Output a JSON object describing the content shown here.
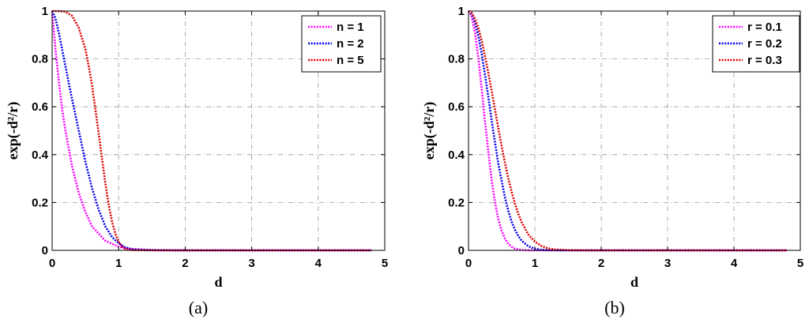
{
  "chart_data": [
    {
      "type": "line",
      "panel_label": "(a)",
      "xlabel": "d",
      "ylabel": "exp(-d²/r)",
      "xlim": [
        0,
        5
      ],
      "ylim": [
        0,
        1
      ],
      "xticks": [
        "0",
        "1",
        "2",
        "3",
        "4",
        "5"
      ],
      "yticks": [
        "0",
        "0.2",
        "0.4",
        "0.6",
        "0.8",
        "1"
      ],
      "grid": true,
      "legend_position": "top-right",
      "series": [
        {
          "name": "n = 1",
          "color": "#ff00ff",
          "x": [
            0,
            0.05,
            0.1,
            0.15,
            0.2,
            0.3,
            0.4,
            0.5,
            0.6,
            0.8,
            1.0,
            1.2,
            1.5,
            2,
            3,
            4,
            4.8
          ],
          "y": [
            1,
            0.84,
            0.71,
            0.59,
            0.5,
            0.35,
            0.24,
            0.16,
            0.1,
            0.04,
            0.015,
            0.005,
            0.001,
            0,
            0,
            0,
            0
          ]
        },
        {
          "name": "n = 2",
          "color": "#0000ee",
          "x": [
            0,
            0.05,
            0.1,
            0.2,
            0.3,
            0.4,
            0.5,
            0.6,
            0.7,
            0.8,
            0.9,
            1.0,
            1.1,
            1.2,
            1.5,
            2,
            3,
            4,
            4.8
          ],
          "y": [
            1,
            0.97,
            0.91,
            0.77,
            0.63,
            0.5,
            0.37,
            0.26,
            0.17,
            0.1,
            0.055,
            0.03,
            0.012,
            0.005,
            0.001,
            0,
            0,
            0,
            0
          ]
        },
        {
          "name": "n = 5",
          "color": "#dd0000",
          "x": [
            0,
            0.1,
            0.2,
            0.3,
            0.4,
            0.5,
            0.55,
            0.6,
            0.65,
            0.7,
            0.75,
            0.8,
            0.85,
            0.9,
            0.95,
            1.0,
            1.05,
            1.1,
            1.2,
            1.5,
            2,
            3,
            4,
            4.8
          ],
          "y": [
            1,
            1,
            0.997,
            0.98,
            0.93,
            0.84,
            0.77,
            0.69,
            0.59,
            0.49,
            0.38,
            0.28,
            0.19,
            0.12,
            0.07,
            0.035,
            0.016,
            0.006,
            0.001,
            0,
            0,
            0,
            0,
            0
          ]
        }
      ]
    },
    {
      "type": "line",
      "panel_label": "(b)",
      "xlabel": "d",
      "ylabel": "exp(-d²/r)",
      "xlim": [
        0,
        5
      ],
      "ylim": [
        0,
        1
      ],
      "xticks": [
        "0",
        "1",
        "2",
        "3",
        "4",
        "5"
      ],
      "yticks": [
        "0",
        "0.2",
        "0.4",
        "0.6",
        "0.8",
        "1"
      ],
      "grid": true,
      "legend_position": "top-right",
      "series": [
        {
          "name": "r = 0.1",
          "color": "#ff00ff",
          "x": [
            0,
            0.05,
            0.1,
            0.15,
            0.2,
            0.25,
            0.3,
            0.35,
            0.4,
            0.45,
            0.5,
            0.55,
            0.6,
            0.65,
            0.7,
            0.75,
            0.8,
            0.9,
            1.0,
            1.2,
            1.5,
            2,
            3,
            4,
            4.8
          ],
          "y": [
            1,
            0.975,
            0.905,
            0.8,
            0.67,
            0.535,
            0.41,
            0.29,
            0.2,
            0.13,
            0.082,
            0.049,
            0.027,
            0.015,
            0.0074,
            0.0036,
            0.0017,
            0.0003,
            0,
            0,
            0,
            0,
            0,
            0,
            0
          ]
        },
        {
          "name": "r = 0.2",
          "color": "#0000ee",
          "x": [
            0,
            0.05,
            0.1,
            0.15,
            0.2,
            0.25,
            0.3,
            0.35,
            0.4,
            0.45,
            0.5,
            0.55,
            0.6,
            0.65,
            0.7,
            0.75,
            0.8,
            0.9,
            1.0,
            1.1,
            1.2,
            1.5,
            2,
            3,
            4,
            4.8
          ],
          "y": [
            1,
            0.988,
            0.95,
            0.894,
            0.82,
            0.73,
            0.64,
            0.54,
            0.45,
            0.36,
            0.29,
            0.22,
            0.165,
            0.12,
            0.086,
            0.06,
            0.041,
            0.017,
            0.0067,
            0.0024,
            0.0007,
            0,
            0,
            0,
            0,
            0
          ]
        },
        {
          "name": "r = 0.3",
          "color": "#dd0000",
          "x": [
            0,
            0.05,
            0.1,
            0.15,
            0.2,
            0.25,
            0.3,
            0.35,
            0.4,
            0.45,
            0.5,
            0.55,
            0.6,
            0.65,
            0.7,
            0.75,
            0.8,
            0.9,
            1.0,
            1.1,
            1.2,
            1.3,
            1.5,
            2,
            3,
            4,
            4.8
          ],
          "y": [
            1,
            0.992,
            0.967,
            0.928,
            0.875,
            0.81,
            0.74,
            0.665,
            0.587,
            0.51,
            0.435,
            0.365,
            0.3,
            0.245,
            0.195,
            0.153,
            0.118,
            0.067,
            0.036,
            0.018,
            0.008,
            0.0036,
            0.0006,
            0,
            0,
            0,
            0
          ]
        }
      ]
    }
  ]
}
